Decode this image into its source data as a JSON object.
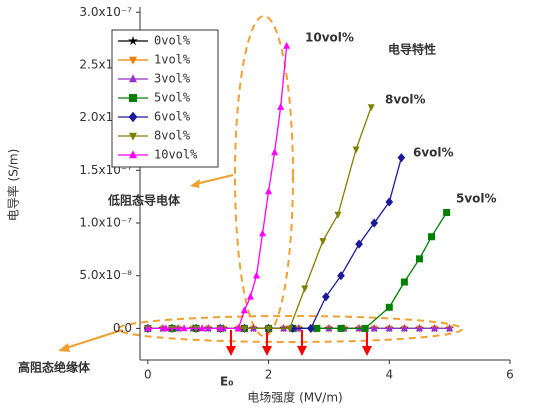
{
  "chart_data": {
    "type": "line",
    "x_label": "电场强度 (MV/m)",
    "y_label": "电导率 (S/m)",
    "xlim": [
      -0.13,
      6
    ],
    "ylim": [
      -3e-08,
      3.05e-07
    ],
    "xticks": [
      0,
      2,
      4,
      6
    ],
    "yticks": [
      {
        "value": 0,
        "label": "0.0"
      },
      {
        "value": 5e-08,
        "label": "5.0x10⁻⁸"
      },
      {
        "value": 1e-07,
        "label": "1.0x10⁻⁷"
      },
      {
        "value": 1.5e-07,
        "label": "1.5x10⁻⁷"
      },
      {
        "value": 2e-07,
        "label": "2.0x10⁻⁷"
      },
      {
        "value": 2.5e-07,
        "label": "2.5x10⁻⁷"
      },
      {
        "value": 3e-07,
        "label": "3.0x10⁻⁷"
      }
    ],
    "legend": "upper-left",
    "series": [
      {
        "name": "0vol%",
        "color": "#000000",
        "marker": "star",
        "x": [
          0,
          0.25,
          0.5,
          0.75,
          1,
          1.25,
          1.5,
          1.75,
          2,
          2.25,
          2.5,
          2.75,
          3,
          3.25,
          3.5,
          3.75,
          4,
          4.25,
          4.5,
          4.75,
          5
        ],
        "values": [
          0,
          0,
          0,
          0,
          0,
          0,
          0,
          0,
          0,
          0,
          0,
          0,
          0,
          0,
          0,
          0,
          0,
          0,
          0,
          0,
          0
        ]
      },
      {
        "name": "1vol%",
        "color": "#f08000",
        "marker": "triangle-down",
        "x": [
          0,
          0.25,
          0.5,
          0.75,
          1,
          1.25,
          1.5,
          1.75,
          2,
          2.25,
          2.5,
          2.75,
          3,
          3.25,
          3.5,
          3.75,
          4,
          4.25,
          4.5,
          4.75,
          5
        ],
        "values": [
          0,
          0,
          0,
          0,
          0,
          0,
          0,
          0,
          0,
          0,
          0,
          0,
          0,
          0,
          0,
          0,
          0,
          0,
          0,
          0,
          0
        ]
      },
      {
        "name": "3vol%",
        "color": "#9932cc",
        "marker": "triangle-up",
        "x": [
          0,
          0.25,
          0.5,
          0.75,
          1,
          1.25,
          1.5,
          1.75,
          2,
          2.25,
          2.5,
          2.75,
          3,
          3.25,
          3.5,
          3.75,
          4,
          4.25,
          4.5,
          4.75,
          5
        ],
        "values": [
          0,
          0,
          0,
          0,
          0,
          0,
          0,
          0,
          0,
          0,
          0,
          0,
          0,
          0,
          0,
          0,
          0,
          0,
          0,
          0,
          0
        ]
      },
      {
        "name": "5vol%",
        "color": "#008000",
        "marker": "square",
        "x": [
          0,
          0.4,
          0.8,
          1.2,
          1.6,
          2,
          2.4,
          2.8,
          3.2,
          3.6,
          4,
          4.25,
          4.5,
          4.7,
          4.95
        ],
        "values": [
          0,
          0,
          0,
          0,
          0,
          0,
          0,
          0,
          0,
          0,
          2e-08,
          4.4e-08,
          6.6e-08,
          8.7e-08,
          1.1e-07
        ]
      },
      {
        "name": "6vol%",
        "color": "#1a1a9a",
        "marker": "diamond",
        "x": [
          0,
          0.4,
          0.8,
          1.2,
          1.6,
          2,
          2.4,
          2.7,
          2.95,
          3.2,
          3.5,
          3.75,
          4,
          4.2
        ],
        "values": [
          0,
          0,
          0,
          0,
          0,
          0,
          0,
          0,
          3e-08,
          5e-08,
          8e-08,
          1e-07,
          1.2e-07,
          1.62e-07
        ]
      },
      {
        "name": "8vol%",
        "color": "#808000",
        "marker": "triangle-down",
        "x": [
          0,
          0.4,
          0.8,
          1.2,
          1.6,
          2,
          2.35,
          2.6,
          2.9,
          3.15,
          3.45,
          3.7
        ],
        "values": [
          0,
          0,
          0,
          0,
          0,
          0,
          0,
          3.8e-08,
          8.3e-08,
          1.08e-07,
          1.7e-07,
          2.1e-07
        ]
      },
      {
        "name": "10vol%",
        "color": "#ff00ff",
        "marker": "triangle-up",
        "x": [
          0,
          0.3,
          0.6,
          0.9,
          1.2,
          1.5,
          1.6,
          1.7,
          1.8,
          1.9,
          2,
          2.1,
          2.2,
          2.3
        ],
        "values": [
          0,
          0,
          0,
          0,
          0,
          0,
          1.7e-08,
          3e-08,
          5e-08,
          9e-08,
          1.3e-07,
          1.67e-07,
          2.1e-07,
          2.68e-07
        ]
      }
    ],
    "annotations": [
      {
        "text": "10vol%",
        "color": "#22aa44"
      },
      {
        "text": "电导特性",
        "color": "#ff0000"
      },
      {
        "text": "8vol%",
        "color": "#22aa44"
      },
      {
        "text": "6vol%",
        "color": "#22aa44"
      },
      {
        "text": "5vol%",
        "color": "#22aa44"
      },
      {
        "text": "低阻态导电体",
        "color": "#e8900a"
      },
      {
        "text": "高阻态绝缘体",
        "color": "#e8900a"
      },
      {
        "text": "E₀",
        "color": "#ff0000"
      }
    ]
  }
}
